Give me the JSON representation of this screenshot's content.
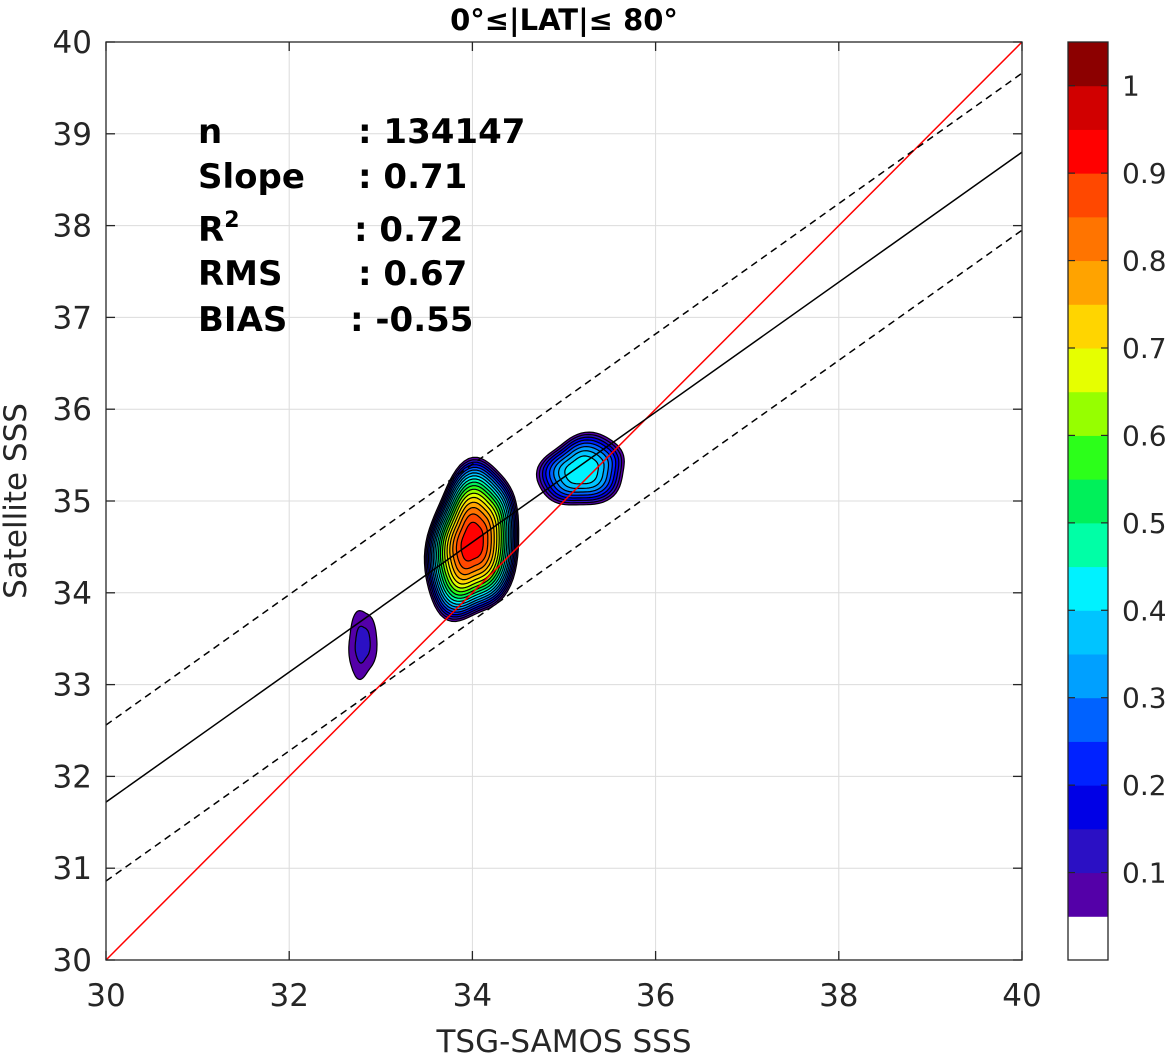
{
  "chart_data": {
    "type": "contour",
    "title": "0°≤|LAT|≤ 80°",
    "xlabel": "TSG-SAMOS SSS",
    "ylabel": "Satellite SSS",
    "xlim": [
      30,
      40
    ],
    "ylim": [
      30,
      40
    ],
    "xticks": [
      "30",
      "32",
      "34",
      "36",
      "38",
      "40"
    ],
    "yticks": [
      "30",
      "31",
      "32",
      "33",
      "34",
      "35",
      "36",
      "37",
      "38",
      "39",
      "40"
    ],
    "grid": true,
    "stats": [
      {
        "label": "n",
        "value": ": 134147"
      },
      {
        "label": "Slope",
        "value": ": 0.71"
      },
      {
        "label": "R",
        "sup": "2",
        "value": ": 0.72"
      },
      {
        "label": "RMS",
        "value": ": 0.67"
      },
      {
        "label": "BIAS",
        "value": ": -0.55"
      }
    ],
    "lines": [
      {
        "name": "one-to-one",
        "color": "#ff0000",
        "style": "solid",
        "points": [
          [
            30,
            30
          ],
          [
            40,
            40
          ]
        ]
      },
      {
        "name": "regression",
        "color": "#000000",
        "style": "solid",
        "points": [
          [
            30,
            31.72
          ],
          [
            40,
            38.8
          ]
        ]
      },
      {
        "name": "upper-bound",
        "color": "#000000",
        "style": "dashed",
        "points": [
          [
            30,
            32.56
          ],
          [
            40,
            39.66
          ]
        ]
      },
      {
        "name": "lower-bound",
        "color": "#000000",
        "style": "dashed",
        "points": [
          [
            30,
            30.86
          ],
          [
            40,
            37.95
          ]
        ]
      }
    ],
    "clusters": [
      {
        "cx": 34.0,
        "cy": 34.55,
        "rx": 0.52,
        "ry": 0.9,
        "peak": 0.93,
        "tilt": 0.18
      },
      {
        "cx": 35.2,
        "cy": 35.33,
        "rx": 0.5,
        "ry": 0.42,
        "peak": 0.44,
        "tilt": 0.3
      },
      {
        "cx": 32.8,
        "cy": 33.44,
        "rx": 0.2,
        "ry": 0.48,
        "peak": 0.1,
        "tilt": 0.05
      }
    ],
    "colorbar": {
      "ticks": [
        "0.1",
        "0.2",
        "0.3",
        "0.4",
        "0.5",
        "0.6",
        "0.7",
        "0.8",
        "0.9",
        "1"
      ],
      "tick_values": [
        0.1,
        0.2,
        0.3,
        0.4,
        0.5,
        0.6,
        0.7,
        0.8,
        0.9,
        1.0
      ],
      "levels": [
        0,
        0.05,
        0.1,
        0.15,
        0.2,
        0.25,
        0.3,
        0.35,
        0.4,
        0.45,
        0.5,
        0.55,
        0.6,
        0.65,
        0.7,
        0.75,
        0.8,
        0.85,
        0.9,
        0.95,
        1.0
      ],
      "colors": [
        "#ffffff",
        "#5400a8",
        "#2b10c4",
        "#0000e6",
        "#0022ff",
        "#0062ff",
        "#00a0ff",
        "#00c4ff",
        "#00f2ff",
        "#00ffa6",
        "#00f05a",
        "#2cff1a",
        "#96ff00",
        "#e6ff00",
        "#ffd500",
        "#ffa300",
        "#ff7400",
        "#ff4800",
        "#ff0000",
        "#d10000",
        "#8c0000"
      ]
    }
  }
}
